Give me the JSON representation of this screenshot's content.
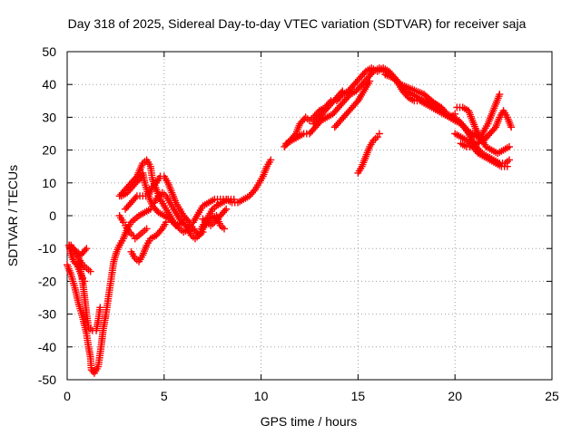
{
  "chart_data": {
    "type": "scatter",
    "title": "Day 318 of 2025, Sidereal Day-to-day VTEC variation (SDTVAR) for receiver saja",
    "xlabel": "GPS time / hours",
    "ylabel": "SDTVAR / TECUs",
    "xlim": [
      0,
      25
    ],
    "ylim": [
      -50,
      50
    ],
    "xticks": [
      0,
      5,
      10,
      15,
      20,
      25
    ],
    "yticks": [
      -50,
      -40,
      -30,
      -20,
      -10,
      0,
      10,
      20,
      30,
      40,
      50
    ],
    "grid": true,
    "marker": "+",
    "color": "#ff0000",
    "series": [
      {
        "values": [
          [
            0.0,
            -15
          ],
          [
            0.2,
            -18
          ],
          [
            0.4,
            -22
          ],
          [
            0.6,
            -27
          ],
          [
            0.8,
            -31
          ],
          [
            1.0,
            -36
          ],
          [
            1.1,
            -40
          ],
          [
            1.2,
            -43
          ],
          [
            1.25,
            -47
          ],
          [
            1.4,
            -48
          ],
          [
            1.6,
            -46
          ],
          [
            1.75,
            -40
          ],
          [
            1.85,
            -35
          ],
          [
            2.0,
            -30
          ],
          [
            2.1,
            -26
          ],
          [
            2.2,
            -22
          ],
          [
            2.3,
            -18
          ],
          [
            2.4,
            -14
          ],
          [
            2.55,
            -11
          ],
          [
            2.7,
            -9
          ]
        ]
      },
      {
        "values": [
          [
            0.1,
            -9
          ],
          [
            0.2,
            -12
          ],
          [
            0.35,
            -14
          ],
          [
            0.5,
            -15
          ],
          [
            0.65,
            -17
          ],
          [
            0.8,
            -19
          ],
          [
            0.9,
            -20
          ]
        ]
      },
      {
        "values": [
          [
            0.1,
            -9
          ],
          [
            0.3,
            -10
          ],
          [
            0.5,
            -11
          ],
          [
            0.7,
            -12
          ],
          [
            0.85,
            -11
          ],
          [
            1.0,
            -10
          ]
        ]
      },
      {
        "values": [
          [
            0.2,
            -9
          ],
          [
            0.4,
            -11
          ],
          [
            0.6,
            -13
          ],
          [
            0.8,
            -15
          ],
          [
            1.0,
            -16
          ],
          [
            1.2,
            -17
          ]
        ]
      },
      {
        "values": [
          [
            0.6,
            -14
          ],
          [
            0.8,
            -20
          ],
          [
            0.9,
            -25
          ],
          [
            1.0,
            -30
          ],
          [
            1.1,
            -34
          ],
          [
            1.3,
            -35
          ],
          [
            1.5,
            -35
          ],
          [
            1.6,
            -32
          ],
          [
            1.7,
            -28
          ]
        ]
      },
      {
        "values": [
          [
            2.7,
            -9
          ],
          [
            2.9,
            -7
          ],
          [
            3.1,
            -4
          ],
          [
            3.3,
            -2
          ],
          [
            3.5,
            -1
          ],
          [
            3.7,
            0
          ],
          [
            4.0,
            1
          ],
          [
            4.3,
            2
          ]
        ]
      },
      {
        "values": [
          [
            2.7,
            0
          ],
          [
            2.9,
            -2
          ],
          [
            3.0,
            -3
          ],
          [
            3.2,
            -5
          ],
          [
            3.4,
            -6
          ],
          [
            3.5,
            -7
          ],
          [
            3.7,
            -6
          ],
          [
            3.9,
            -5
          ],
          [
            4.1,
            -4
          ]
        ]
      },
      {
        "values": [
          [
            3.3,
            -11
          ],
          [
            3.5,
            -13
          ],
          [
            3.7,
            -14
          ],
          [
            3.9,
            -12
          ],
          [
            4.1,
            -9
          ],
          [
            4.3,
            -7
          ],
          [
            4.6,
            -6
          ],
          [
            4.9,
            -4
          ],
          [
            5.1,
            -2
          ]
        ]
      },
      {
        "values": [
          [
            2.7,
            6
          ],
          [
            3.0,
            8
          ],
          [
            3.3,
            10
          ],
          [
            3.6,
            12
          ],
          [
            3.9,
            16
          ],
          [
            4.1,
            17
          ],
          [
            4.3,
            15
          ],
          [
            4.4,
            11
          ],
          [
            4.6,
            8
          ],
          [
            4.8,
            5
          ],
          [
            5.0,
            3
          ],
          [
            5.2,
            1
          ],
          [
            5.5,
            -2
          ],
          [
            5.8,
            -4
          ],
          [
            6.0,
            -5
          ],
          [
            6.3,
            -4
          ]
        ]
      },
      {
        "values": [
          [
            2.8,
            6
          ],
          [
            3.1,
            7
          ],
          [
            3.4,
            9
          ],
          [
            3.7,
            11
          ],
          [
            3.9,
            13
          ],
          [
            4.0,
            10
          ],
          [
            4.2,
            6
          ],
          [
            4.4,
            3
          ],
          [
            4.7,
            1
          ],
          [
            5.0,
            0
          ],
          [
            5.3,
            -1
          ],
          [
            5.6,
            -3
          ],
          [
            6.0,
            -2
          ]
        ]
      },
      {
        "values": [
          [
            3.0,
            2
          ],
          [
            3.3,
            4
          ],
          [
            3.6,
            6
          ],
          [
            3.9,
            6
          ],
          [
            4.2,
            6
          ],
          [
            4.4,
            9
          ],
          [
            4.6,
            10
          ],
          [
            4.8,
            12
          ],
          [
            5.0,
            12
          ],
          [
            5.2,
            10
          ],
          [
            5.4,
            7
          ],
          [
            5.6,
            4
          ],
          [
            5.8,
            2
          ],
          [
            6.0,
            0
          ],
          [
            6.3,
            -2
          ],
          [
            6.5,
            -4
          ],
          [
            6.8,
            -6
          ],
          [
            7.0,
            -5
          ]
        ]
      },
      {
        "values": [
          [
            4.5,
            4
          ],
          [
            4.7,
            6
          ],
          [
            4.9,
            7
          ],
          [
            5.1,
            6
          ],
          [
            5.3,
            4
          ],
          [
            5.5,
            2
          ],
          [
            5.8,
            -1
          ],
          [
            6.1,
            -3
          ],
          [
            6.4,
            -6
          ],
          [
            6.6,
            -7
          ],
          [
            6.8,
            -6
          ],
          [
            7.1,
            -3
          ],
          [
            7.4,
            -1
          ],
          [
            7.7,
            0
          ],
          [
            7.9,
            -3
          ],
          [
            8.1,
            -4
          ]
        ]
      },
      {
        "values": [
          [
            6.5,
            -2
          ],
          [
            6.8,
            1
          ],
          [
            7.0,
            3
          ],
          [
            7.3,
            4
          ],
          [
            7.6,
            5
          ],
          [
            7.9,
            5
          ],
          [
            8.2,
            5
          ],
          [
            8.5,
            4
          ],
          [
            8.8,
            4
          ],
          [
            9.1,
            5
          ],
          [
            9.4,
            6
          ],
          [
            9.7,
            8
          ],
          [
            9.9,
            10
          ],
          [
            10.1,
            12
          ],
          [
            10.3,
            15
          ],
          [
            10.5,
            17
          ]
        ]
      },
      {
        "values": [
          [
            6.9,
            -4
          ],
          [
            7.1,
            -2
          ],
          [
            7.3,
            0
          ],
          [
            7.5,
            2
          ],
          [
            7.7,
            3
          ],
          [
            8.0,
            4
          ],
          [
            8.3,
            5
          ],
          [
            8.6,
            5
          ]
        ]
      },
      {
        "values": [
          [
            7.0,
            -1
          ],
          [
            7.2,
            -2
          ],
          [
            7.4,
            -3
          ],
          [
            7.6,
            -2
          ],
          [
            7.9,
            0
          ],
          [
            8.2,
            2
          ]
        ]
      },
      {
        "values": [
          [
            11.2,
            21
          ],
          [
            11.5,
            23
          ],
          [
            11.8,
            25
          ],
          [
            12.0,
            28
          ],
          [
            12.3,
            30
          ],
          [
            12.5,
            29
          ],
          [
            12.7,
            30
          ],
          [
            13.0,
            32
          ],
          [
            13.3,
            33
          ],
          [
            13.6,
            35
          ],
          [
            13.9,
            35
          ],
          [
            14.2,
            37
          ],
          [
            14.5,
            38
          ],
          [
            14.8,
            40
          ],
          [
            15.1,
            42
          ],
          [
            15.4,
            44
          ],
          [
            15.7,
            45
          ],
          [
            16.0,
            44
          ],
          [
            16.3,
            45
          ],
          [
            16.6,
            44
          ],
          [
            16.9,
            42
          ],
          [
            17.2,
            40
          ],
          [
            17.5,
            38
          ],
          [
            17.8,
            37
          ],
          [
            18.1,
            36
          ],
          [
            18.4,
            35
          ],
          [
            18.7,
            34
          ],
          [
            19.0,
            34
          ],
          [
            19.3,
            33
          ],
          [
            19.6,
            31
          ],
          [
            19.9,
            30
          ],
          [
            20.2,
            29
          ],
          [
            20.5,
            27
          ],
          [
            20.8,
            24
          ],
          [
            21.1,
            21
          ],
          [
            21.4,
            19
          ],
          [
            21.7,
            18
          ],
          [
            22.0,
            17
          ],
          [
            22.3,
            16
          ],
          [
            22.6,
            16
          ],
          [
            22.8,
            17
          ]
        ]
      },
      {
        "values": [
          [
            11.3,
            22
          ],
          [
            11.6,
            23
          ],
          [
            11.9,
            24
          ],
          [
            12.2,
            25
          ],
          [
            12.5,
            25
          ],
          [
            12.8,
            27
          ],
          [
            13.1,
            29
          ],
          [
            13.4,
            30
          ],
          [
            13.7,
            31
          ],
          [
            14.0,
            33
          ],
          [
            14.3,
            35
          ],
          [
            14.6,
            37
          ],
          [
            14.9,
            38
          ],
          [
            15.2,
            40
          ],
          [
            15.5,
            42
          ],
          [
            15.8,
            44
          ],
          [
            16.1,
            45
          ],
          [
            16.4,
            44
          ],
          [
            16.7,
            43
          ],
          [
            17.0,
            41
          ],
          [
            17.3,
            38
          ],
          [
            17.6,
            36
          ],
          [
            17.9,
            35
          ],
          [
            18.2,
            35
          ],
          [
            18.5,
            34
          ],
          [
            18.8,
            33
          ],
          [
            19.1,
            32
          ],
          [
            19.4,
            31
          ],
          [
            19.7,
            30
          ],
          [
            20.0,
            29
          ],
          [
            20.3,
            28
          ],
          [
            20.6,
            26
          ],
          [
            20.9,
            25
          ],
          [
            21.2,
            24
          ],
          [
            21.5,
            23
          ],
          [
            21.8,
            25
          ],
          [
            22.1,
            27
          ],
          [
            22.3,
            30
          ],
          [
            22.5,
            32
          ],
          [
            22.7,
            30
          ],
          [
            22.9,
            27
          ]
        ]
      },
      {
        "values": [
          [
            12.7,
            28
          ],
          [
            13.0,
            30
          ],
          [
            13.3,
            32
          ],
          [
            13.6,
            34
          ],
          [
            13.9,
            36
          ],
          [
            14.2,
            38
          ]
        ]
      },
      {
        "values": [
          [
            13.8,
            27
          ],
          [
            14.1,
            29
          ],
          [
            14.4,
            31
          ],
          [
            14.7,
            33
          ],
          [
            15.0,
            35
          ],
          [
            15.3,
            38
          ],
          [
            15.6,
            41
          ]
        ]
      },
      {
        "values": [
          [
            15.0,
            13
          ],
          [
            15.2,
            15
          ],
          [
            15.4,
            18
          ],
          [
            15.6,
            21
          ],
          [
            15.8,
            23
          ],
          [
            16.0,
            24
          ],
          [
            16.1,
            25
          ]
        ]
      },
      {
        "values": [
          [
            16.4,
            43
          ],
          [
            16.8,
            42
          ],
          [
            17.2,
            40
          ],
          [
            17.6,
            39
          ],
          [
            18.0,
            38
          ],
          [
            18.4,
            37
          ],
          [
            18.8,
            35
          ],
          [
            19.2,
            33
          ],
          [
            19.5,
            31
          ],
          [
            19.8,
            30
          ],
          [
            20.0,
            31
          ]
        ]
      },
      {
        "values": [
          [
            20.1,
            33
          ],
          [
            20.4,
            33
          ],
          [
            20.7,
            32
          ],
          [
            20.9,
            29
          ],
          [
            21.1,
            26
          ],
          [
            21.3,
            24
          ],
          [
            21.6,
            21
          ],
          [
            21.9,
            20
          ],
          [
            22.2,
            19
          ],
          [
            22.5,
            20
          ],
          [
            22.8,
            21
          ]
        ]
      },
      {
        "values": [
          [
            20.3,
            22
          ],
          [
            20.6,
            21
          ],
          [
            20.9,
            21
          ],
          [
            21.2,
            22
          ],
          [
            21.5,
            26
          ],
          [
            21.7,
            28
          ],
          [
            21.9,
            31
          ],
          [
            22.1,
            34
          ],
          [
            22.3,
            37
          ]
        ]
      },
      {
        "values": [
          [
            20.0,
            25
          ],
          [
            20.3,
            24
          ],
          [
            20.6,
            23
          ],
          [
            20.9,
            21
          ],
          [
            21.2,
            19
          ],
          [
            21.5,
            18
          ],
          [
            21.8,
            17
          ],
          [
            22.1,
            16
          ],
          [
            22.4,
            15
          ],
          [
            22.7,
            15
          ]
        ]
      }
    ]
  }
}
